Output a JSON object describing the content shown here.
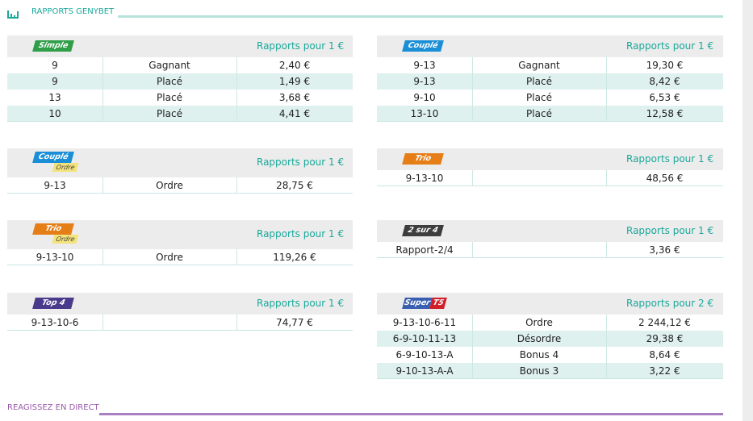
{
  "header": {
    "title": "RAPPORTS GENYBET"
  },
  "columns": [
    [
      {
        "badge": "Simple",
        "badge_color": "#2f9e48",
        "header": "Rapports pour 1 €",
        "rows": [
          [
            "9",
            "Gagnant",
            "2,40 €"
          ],
          [
            "9",
            "Placé",
            "1,49 €"
          ],
          [
            "13",
            "Placé",
            "3,68 €"
          ],
          [
            "10",
            "Placé",
            "4,41 €"
          ]
        ]
      },
      {
        "badge": "Couplé",
        "badge_color": "#1a8ed6",
        "tag": "Ordre",
        "header": "Rapports pour 1 €",
        "rows": [
          [
            "9-13",
            "Ordre",
            "28,75 €"
          ]
        ]
      },
      {
        "badge": "Trio",
        "badge_color": "#e67e17",
        "tag": "Ordre",
        "header": "Rapports pour 1 €",
        "rows": [
          [
            "9-13-10",
            "Ordre",
            "119,26 €"
          ]
        ]
      },
      {
        "badge": "Top 4",
        "badge_color": "#4a3a8c",
        "header": "Rapports pour 1 €",
        "rows": [
          [
            "9-13-10-6",
            null,
            "74,77 €"
          ]
        ]
      }
    ],
    [
      {
        "badge": "Couplé",
        "badge_color": "#1a8ed6",
        "header": "Rapports pour 1 €",
        "rows": [
          [
            "9-13",
            "Gagnant",
            "19,30 €"
          ],
          [
            "9-13",
            "Placé",
            "8,42 €"
          ],
          [
            "9-10",
            "Placé",
            "6,53 €"
          ],
          [
            "13-10",
            "Placé",
            "12,58 €"
          ]
        ]
      },
      {
        "badge": "Trio",
        "badge_color": "#e67e17",
        "header": "Rapports pour 1 €",
        "rows": [
          [
            "9-13-10",
            null,
            "48,56 €"
          ]
        ]
      },
      {
        "badge": "2 sur 4",
        "badge_color": "#3d3d3d",
        "header": "Rapports pour 1 €",
        "rows": [
          [
            "Rapport-2/4",
            null,
            "3,36 €"
          ]
        ]
      },
      {
        "badge": "Super",
        "badge_color": "#3a5fb0",
        "badge_suffix": "T5",
        "badge_suffix_color": "#d0202a",
        "header": "Rapports pour 2 €",
        "rows": [
          [
            "9-13-10-6-11",
            "Ordre",
            "2 244,12 €"
          ],
          [
            "6-9-10-11-13",
            "Désordre",
            "29,38 €"
          ],
          [
            "6-9-10-13-A",
            "Bonus 4",
            "8,64 €"
          ],
          [
            "9-10-13-A-A",
            "Bonus 3",
            "3,22 €"
          ]
        ]
      }
    ]
  ],
  "footer": {
    "title": "REAGISSEZ EN DIRECT"
  }
}
